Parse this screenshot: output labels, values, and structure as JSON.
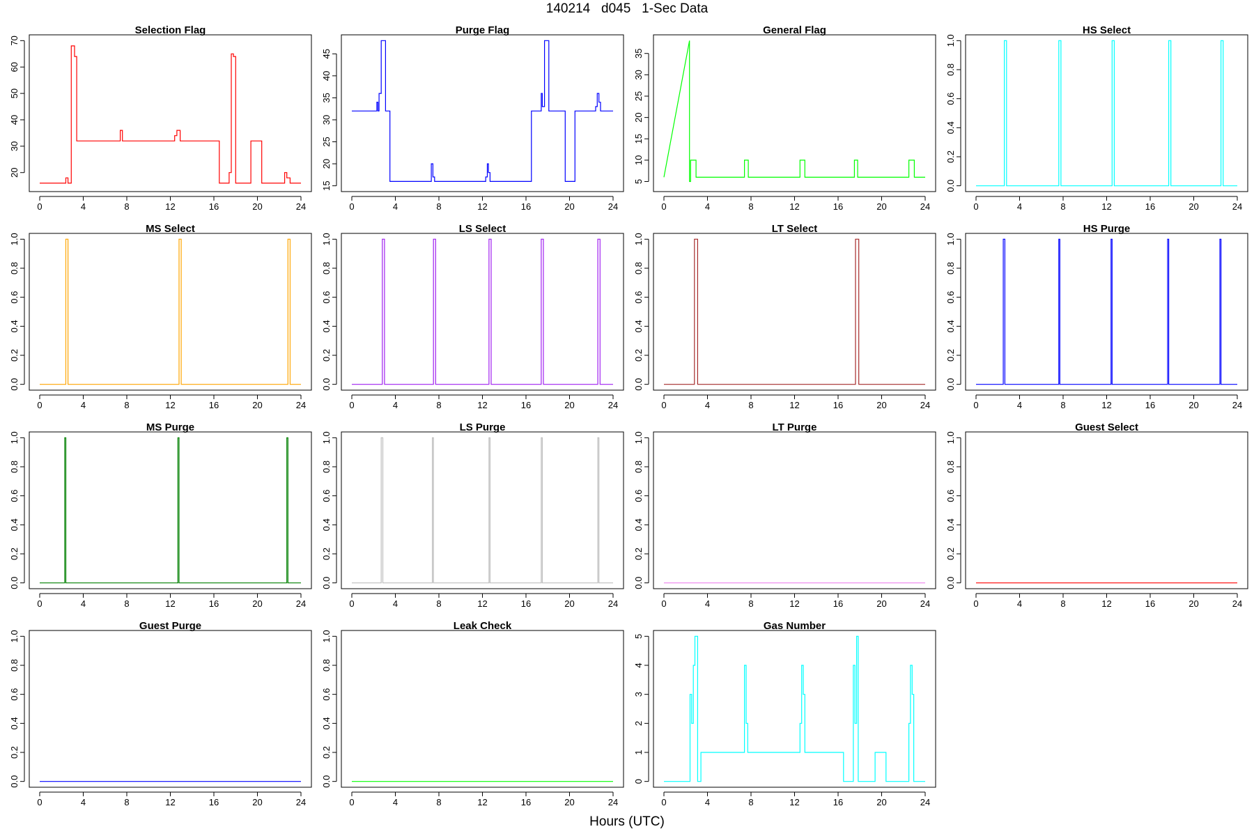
{
  "title": "140214   d045   1-Sec Data",
  "xlabel": "Hours (UTC)",
  "chart_data": [
    {
      "type": "line",
      "title": "Selection Flag",
      "color": "#ff0000",
      "xlim": [
        0,
        24
      ],
      "ylim": [
        15,
        70
      ],
      "x_ticks": [
        0,
        4,
        8,
        12,
        16,
        20,
        24
      ],
      "y_ticks": [
        20,
        30,
        40,
        50,
        60,
        70
      ],
      "y_tick_labels": [
        "20",
        "30",
        "40",
        "50",
        "60",
        "70"
      ],
      "series": [
        {
          "name": "Selection Flag",
          "x": [
            0,
            2.4,
            2.4,
            2.6,
            2.6,
            2.9,
            2.9,
            3.2,
            3.2,
            3.4,
            3.4,
            7.4,
            7.4,
            7.6,
            7.6,
            12.4,
            12.4,
            12.6,
            12.6,
            12.9,
            12.9,
            16.5,
            16.5,
            17.4,
            17.4,
            17.6,
            17.6,
            17.8,
            17.8,
            18,
            18,
            19.4,
            19.4,
            20.4,
            20.4,
            22.5,
            22.5,
            22.7,
            22.7,
            23,
            23,
            24
          ],
          "y": [
            16,
            16,
            18,
            18,
            16,
            16,
            68,
            68,
            64,
            64,
            32,
            32,
            36,
            36,
            32,
            32,
            34,
            34,
            36,
            36,
            32,
            32,
            16,
            16,
            20,
            20,
            65,
            65,
            64,
            64,
            16,
            16,
            32,
            32,
            16,
            16,
            20,
            20,
            18,
            18,
            16,
            16
          ]
        }
      ]
    },
    {
      "type": "line",
      "title": "Purge Flag",
      "color": "#0000ff",
      "xlim": [
        0,
        24
      ],
      "ylim": [
        15,
        48
      ],
      "x_ticks": [
        0,
        4,
        8,
        12,
        16,
        20,
        24
      ],
      "y_ticks": [
        15,
        20,
        25,
        30,
        35,
        40,
        45
      ],
      "y_tick_labels": [
        "15",
        "20",
        "25",
        "30",
        "35",
        "40",
        "45"
      ],
      "series": [
        {
          "name": "Purge Flag",
          "x": [
            0,
            2.3,
            2.3,
            2.4,
            2.4,
            2.5,
            2.5,
            2.7,
            2.7,
            3.1,
            3.1,
            3.5,
            3.5,
            7.3,
            7.3,
            7.45,
            7.45,
            7.6,
            7.6,
            12.3,
            12.3,
            12.45,
            12.45,
            12.55,
            12.55,
            12.7,
            12.7,
            16.5,
            16.5,
            17.4,
            17.4,
            17.5,
            17.5,
            17.7,
            17.7,
            18.1,
            18.1,
            19.6,
            19.6,
            20.5,
            20.5,
            22.4,
            22.4,
            22.55,
            22.55,
            22.7,
            22.7,
            22.85,
            22.85,
            24
          ],
          "y": [
            32,
            32,
            34,
            34,
            32,
            32,
            36,
            36,
            48,
            48,
            32,
            32,
            16,
            16,
            20,
            20,
            17,
            17,
            16,
            16,
            17,
            17,
            20,
            20,
            18,
            18,
            16,
            16,
            32,
            32,
            36,
            36,
            33,
            33,
            48,
            48,
            32,
            32,
            16,
            16,
            32,
            32,
            33,
            33,
            36,
            36,
            34,
            34,
            32,
            32
          ]
        }
      ]
    },
    {
      "type": "line",
      "title": "General Flag",
      "color": "#00ff00",
      "xlim": [
        0,
        24
      ],
      "ylim": [
        4,
        38
      ],
      "x_ticks": [
        0,
        4,
        8,
        12,
        16,
        20,
        24
      ],
      "y_ticks": [
        5,
        10,
        15,
        20,
        25,
        30,
        35
      ],
      "y_tick_labels": [
        "5",
        "10",
        "15",
        "20",
        "25",
        "30",
        "35"
      ],
      "series": [
        {
          "name": "General Flag",
          "x": [
            0,
            2.35,
            2.35,
            2.45,
            2.45,
            2.95,
            2.95,
            7.4,
            7.4,
            7.75,
            7.75,
            12.5,
            12.5,
            12.95,
            12.95,
            17.5,
            17.5,
            17.8,
            17.8,
            22.5,
            22.5,
            23,
            23,
            24
          ],
          "y": [
            6,
            38,
            5,
            5,
            10,
            10,
            6,
            6,
            10,
            10,
            6,
            6,
            10,
            10,
            6,
            6,
            10,
            10,
            6,
            6,
            10,
            10,
            6,
            6
          ]
        }
      ]
    },
    {
      "type": "line",
      "title": "HS Select",
      "color": "#00ffff",
      "xlim": [
        0,
        24
      ],
      "ylim": [
        0,
        1
      ],
      "x_ticks": [
        0,
        4,
        8,
        12,
        16,
        20,
        24
      ],
      "y_ticks": [
        0,
        0.2,
        0.4,
        0.6,
        0.8,
        1
      ],
      "y_tick_labels": [
        "0.0",
        "0.2",
        "0.4",
        "0.6",
        "0.8",
        "1.0"
      ],
      "series": [
        {
          "name": "HS Select",
          "x": [
            0,
            2.6,
            2.6,
            2.8,
            2.8,
            7.6,
            7.6,
            7.8,
            7.8,
            12.5,
            12.5,
            12.7,
            12.7,
            17.7,
            17.7,
            17.9,
            17.9,
            22.5,
            22.5,
            22.7,
            22.7,
            24
          ],
          "y": [
            0,
            0,
            1,
            1,
            0,
            0,
            1,
            1,
            0,
            0,
            1,
            1,
            0,
            0,
            1,
            1,
            0,
            0,
            1,
            1,
            0,
            0
          ]
        }
      ]
    },
    {
      "type": "line",
      "title": "MS Select",
      "color": "#ffa500",
      "xlim": [
        0,
        24
      ],
      "ylim": [
        0,
        1
      ],
      "x_ticks": [
        0,
        4,
        8,
        12,
        16,
        20,
        24
      ],
      "y_ticks": [
        0,
        0.2,
        0.4,
        0.6,
        0.8,
        1
      ],
      "y_tick_labels": [
        "0.0",
        "0.2",
        "0.4",
        "0.6",
        "0.8",
        "1.0"
      ],
      "series": [
        {
          "name": "MS Select",
          "x": [
            0,
            2.4,
            2.4,
            2.6,
            2.6,
            12.8,
            12.8,
            13,
            13,
            22.8,
            22.8,
            23,
            23,
            24
          ],
          "y": [
            0,
            0,
            1,
            1,
            0,
            0,
            1,
            1,
            0,
            0,
            1,
            1,
            0,
            0
          ]
        }
      ]
    },
    {
      "type": "line",
      "title": "LS Select",
      "color": "#a020f0",
      "xlim": [
        0,
        24
      ],
      "ylim": [
        0,
        1
      ],
      "x_ticks": [
        0,
        4,
        8,
        12,
        16,
        20,
        24
      ],
      "y_ticks": [
        0,
        0.2,
        0.4,
        0.6,
        0.8,
        1
      ],
      "y_tick_labels": [
        "0.0",
        "0.2",
        "0.4",
        "0.6",
        "0.8",
        "1.0"
      ],
      "series": [
        {
          "name": "LS Select",
          "x": [
            0,
            2.8,
            2.8,
            3,
            3,
            7.5,
            7.5,
            7.7,
            7.7,
            12.6,
            12.6,
            12.8,
            12.8,
            17.4,
            17.4,
            17.6,
            17.6,
            22.6,
            22.6,
            22.8,
            22.8,
            24
          ],
          "y": [
            0,
            0,
            1,
            1,
            0,
            0,
            1,
            1,
            0,
            0,
            1,
            1,
            0,
            0,
            1,
            1,
            0,
            0,
            1,
            1,
            0,
            0
          ]
        }
      ]
    },
    {
      "type": "line",
      "title": "LT Select",
      "color": "#a52a2a",
      "xlim": [
        0,
        24
      ],
      "ylim": [
        0,
        1
      ],
      "x_ticks": [
        0,
        4,
        8,
        12,
        16,
        20,
        24
      ],
      "y_ticks": [
        0,
        0.2,
        0.4,
        0.6,
        0.8,
        1
      ],
      "y_tick_labels": [
        "0.0",
        "0.2",
        "0.4",
        "0.6",
        "0.8",
        "1.0"
      ],
      "series": [
        {
          "name": "LT Select",
          "x": [
            0,
            2.8,
            2.8,
            3.1,
            3.1,
            17.6,
            17.6,
            17.9,
            17.9,
            24
          ],
          "y": [
            0,
            0,
            1,
            1,
            0,
            0,
            1,
            1,
            0,
            0
          ]
        }
      ]
    },
    {
      "type": "line",
      "title": "HS Purge",
      "color": "#0000ff",
      "xlim": [
        0,
        24
      ],
      "ylim": [
        0,
        1
      ],
      "x_ticks": [
        0,
        4,
        8,
        12,
        16,
        20,
        24
      ],
      "y_ticks": [
        0,
        0.2,
        0.4,
        0.6,
        0.8,
        1
      ],
      "y_tick_labels": [
        "0.0",
        "0.2",
        "0.4",
        "0.6",
        "0.8",
        "1.0"
      ],
      "series": [
        {
          "name": "HS Purge",
          "x": [
            0,
            2.5,
            2.5,
            2.65,
            2.65,
            7.6,
            7.6,
            7.7,
            7.7,
            12.4,
            12.4,
            12.5,
            12.5,
            17.6,
            17.6,
            17.7,
            17.7,
            22.4,
            22.4,
            22.5,
            22.5,
            24
          ],
          "y": [
            0,
            0,
            1,
            1,
            0,
            0,
            1,
            1,
            0,
            0,
            1,
            1,
            0,
            0,
            1,
            1,
            0,
            0,
            1,
            1,
            0,
            0
          ]
        }
      ]
    },
    {
      "type": "line",
      "title": "MS Purge",
      "color": "#008000",
      "xlim": [
        0,
        24
      ],
      "ylim": [
        0,
        1
      ],
      "x_ticks": [
        0,
        4,
        8,
        12,
        16,
        20,
        24
      ],
      "y_ticks": [
        0,
        0.2,
        0.4,
        0.6,
        0.8,
        1
      ],
      "y_tick_labels": [
        "0.0",
        "0.2",
        "0.4",
        "0.6",
        "0.8",
        "1.0"
      ],
      "series": [
        {
          "name": "MS Purge",
          "x": [
            0,
            2.3,
            2.3,
            2.4,
            2.4,
            12.7,
            12.7,
            12.8,
            12.8,
            22.7,
            22.7,
            22.8,
            22.8,
            24
          ],
          "y": [
            0,
            0,
            1,
            1,
            0,
            0,
            1,
            1,
            0,
            0,
            1,
            1,
            0,
            0
          ]
        }
      ]
    },
    {
      "type": "line",
      "title": "LS Purge",
      "color": "#bebebe",
      "xlim": [
        0,
        24
      ],
      "ylim": [
        0,
        1
      ],
      "x_ticks": [
        0,
        4,
        8,
        12,
        16,
        20,
        24
      ],
      "y_ticks": [
        0,
        0.2,
        0.4,
        0.6,
        0.8,
        1
      ],
      "y_tick_labels": [
        "0.0",
        "0.2",
        "0.4",
        "0.6",
        "0.8",
        "1.0"
      ],
      "series": [
        {
          "name": "LS Purge",
          "x": [
            0,
            2.7,
            2.7,
            2.85,
            2.85,
            7.4,
            7.4,
            7.5,
            7.5,
            12.6,
            12.6,
            12.7,
            12.7,
            17.4,
            17.4,
            17.5,
            17.5,
            22.6,
            22.6,
            22.7,
            22.7,
            24
          ],
          "y": [
            0,
            0,
            1,
            1,
            0,
            0,
            1,
            1,
            0,
            0,
            1,
            1,
            0,
            0,
            1,
            1,
            0,
            0,
            1,
            1,
            0,
            0
          ]
        }
      ]
    },
    {
      "type": "line",
      "title": "LT Purge",
      "color": "#ee82ee",
      "xlim": [
        0,
        24
      ],
      "ylim": [
        0,
        1
      ],
      "x_ticks": [
        0,
        4,
        8,
        12,
        16,
        20,
        24
      ],
      "y_ticks": [
        0,
        0.2,
        0.4,
        0.6,
        0.8,
        1
      ],
      "y_tick_labels": [
        "0.0",
        "0.2",
        "0.4",
        "0.6",
        "0.8",
        "1.0"
      ],
      "series": [
        {
          "name": "LT Purge",
          "x": [
            0,
            24
          ],
          "y": [
            0,
            0
          ]
        }
      ]
    },
    {
      "type": "line",
      "title": "Guest Select",
      "color": "#ff0000",
      "xlim": [
        0,
        24
      ],
      "ylim": [
        0,
        1
      ],
      "x_ticks": [
        0,
        4,
        8,
        12,
        16,
        20,
        24
      ],
      "y_ticks": [
        0,
        0.2,
        0.4,
        0.6,
        0.8,
        1
      ],
      "y_tick_labels": [
        "0.0",
        "0.2",
        "0.4",
        "0.6",
        "0.8",
        "1.0"
      ],
      "series": [
        {
          "name": "Guest Select",
          "x": [
            0,
            24
          ],
          "y": [
            0,
            0
          ]
        }
      ]
    },
    {
      "type": "line",
      "title": "Guest Purge",
      "color": "#0000ff",
      "xlim": [
        0,
        24
      ],
      "ylim": [
        0,
        1
      ],
      "x_ticks": [
        0,
        4,
        8,
        12,
        16,
        20,
        24
      ],
      "y_ticks": [
        0,
        0.2,
        0.4,
        0.6,
        0.8,
        1
      ],
      "y_tick_labels": [
        "0.0",
        "0.2",
        "0.4",
        "0.6",
        "0.8",
        "1.0"
      ],
      "series": [
        {
          "name": "Guest Purge",
          "x": [
            0,
            24
          ],
          "y": [
            0,
            0
          ]
        }
      ]
    },
    {
      "type": "line",
      "title": "Leak Check",
      "color": "#00ff00",
      "xlim": [
        0,
        24
      ],
      "ylim": [
        0,
        1
      ],
      "x_ticks": [
        0,
        4,
        8,
        12,
        16,
        20,
        24
      ],
      "y_ticks": [
        0,
        0.2,
        0.4,
        0.6,
        0.8,
        1
      ],
      "y_tick_labels": [
        "0.0",
        "0.2",
        "0.4",
        "0.6",
        "0.8",
        "1.0"
      ],
      "series": [
        {
          "name": "Leak Check",
          "x": [
            0,
            24
          ],
          "y": [
            0,
            0
          ]
        }
      ]
    },
    {
      "type": "line",
      "title": "Gas Number",
      "color": "#00ffff",
      "xlim": [
        0,
        24
      ],
      "ylim": [
        0,
        5
      ],
      "x_ticks": [
        0,
        4,
        8,
        12,
        16,
        20,
        24
      ],
      "y_ticks": [
        0,
        1,
        2,
        3,
        4,
        5
      ],
      "y_tick_labels": [
        "0",
        "1",
        "2",
        "3",
        "4",
        "5"
      ],
      "series": [
        {
          "name": "Gas Number",
          "x": [
            0,
            2.4,
            2.4,
            2.55,
            2.55,
            2.7,
            2.7,
            2.85,
            2.85,
            3.1,
            3.1,
            3.4,
            3.4,
            7.4,
            7.4,
            7.55,
            7.55,
            7.7,
            7.7,
            12.5,
            12.5,
            12.65,
            12.65,
            12.8,
            12.8,
            12.95,
            12.95,
            16.5,
            16.5,
            17.4,
            17.4,
            17.55,
            17.55,
            17.7,
            17.7,
            17.85,
            17.85,
            18,
            18,
            19.4,
            19.4,
            20.4,
            20.4,
            22.5,
            22.5,
            22.65,
            22.65,
            22.8,
            22.8,
            22.95,
            22.95,
            24
          ],
          "y": [
            0,
            0,
            3,
            3,
            2,
            2,
            4,
            4,
            5,
            5,
            0,
            0,
            1,
            1,
            4,
            4,
            2,
            2,
            1,
            1,
            2,
            2,
            4,
            4,
            3,
            3,
            1,
            1,
            0,
            0,
            4,
            4,
            2,
            2,
            5,
            5,
            0,
            0,
            0,
            0,
            1,
            1,
            0,
            0,
            2,
            2,
            4,
            4,
            3,
            3,
            0,
            0
          ]
        }
      ]
    }
  ]
}
